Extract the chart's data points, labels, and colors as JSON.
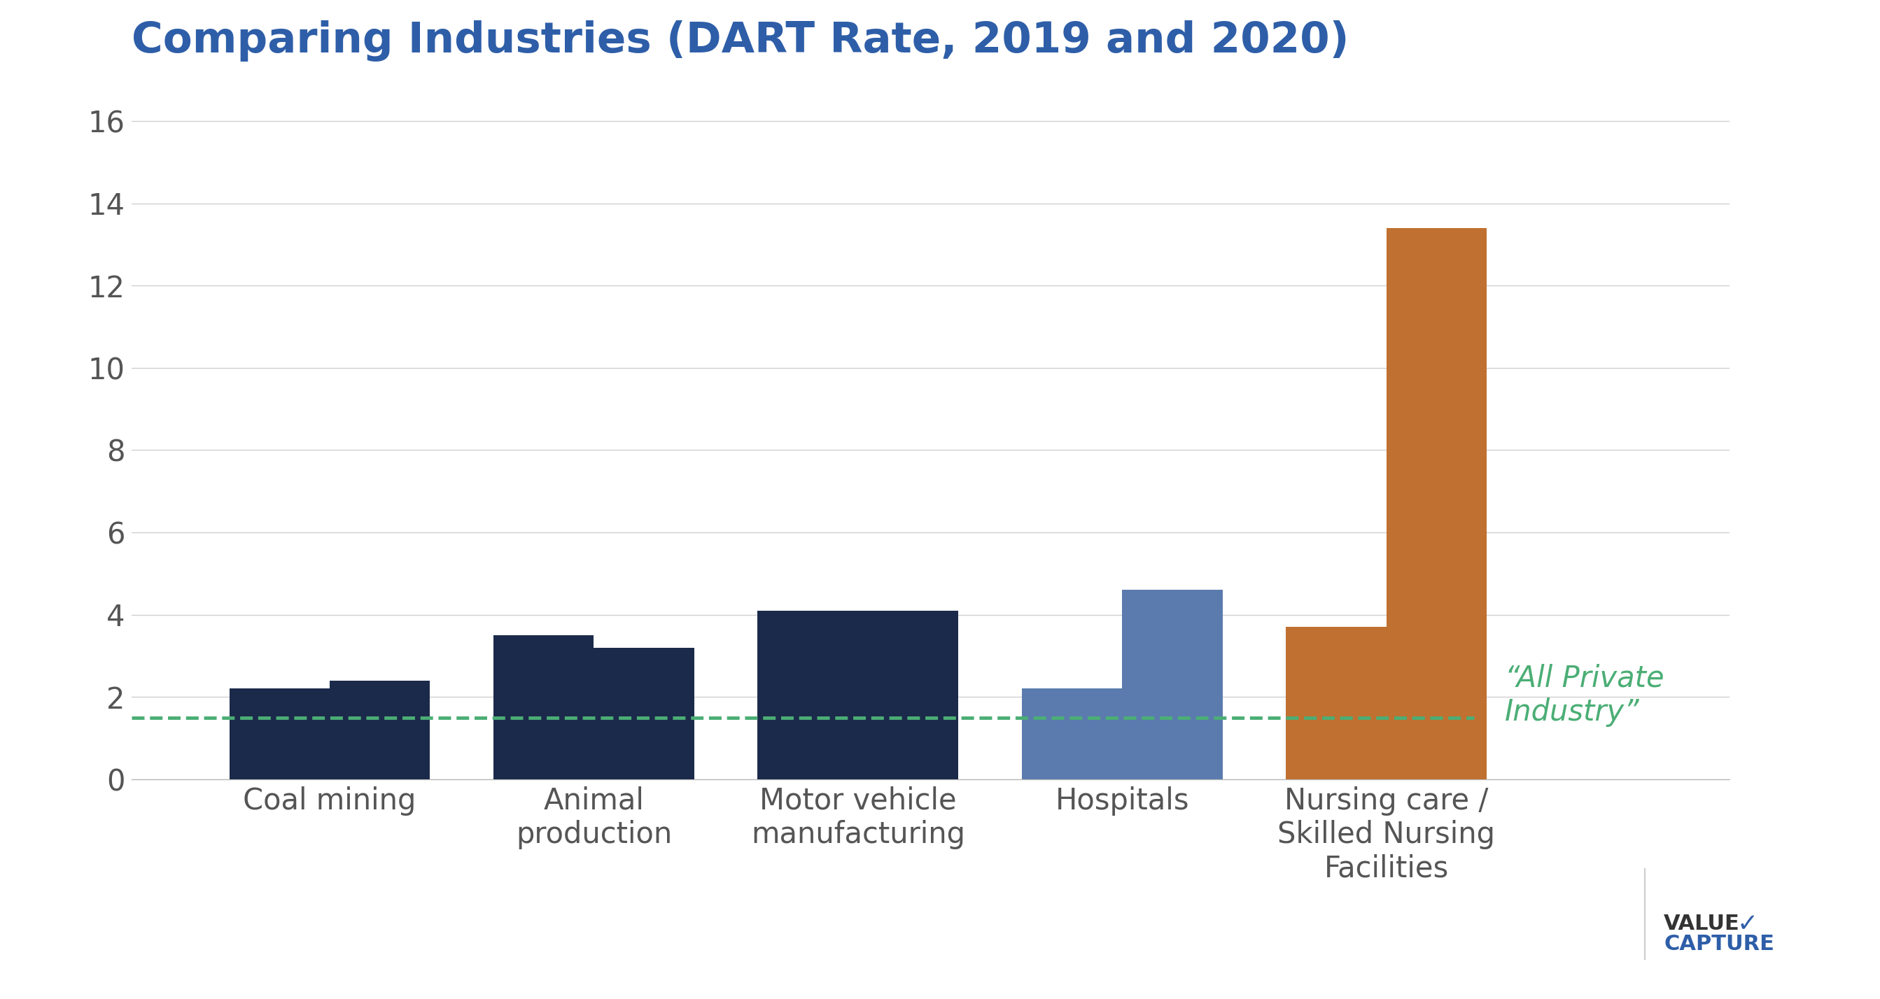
{
  "title": "Comparing Industries (DART Rate, 2019 and 2020)",
  "title_color": "#2E5EA8",
  "title_fontsize": 44,
  "categories": [
    "Coal mining",
    "Animal\nproduction",
    "Motor vehicle\nmanufacturing",
    "Hospitals",
    "Nursing care /\nSkilled Nursing\nFacilities"
  ],
  "values_2019": [
    2.2,
    3.5,
    4.1,
    2.2,
    3.7
  ],
  "values_2020": [
    2.4,
    3.2,
    4.1,
    4.6,
    13.4
  ],
  "colors_2019": [
    "#1B2A4A",
    "#1B2A4A",
    "#1B2A4A",
    "#5B7BAE",
    "#C07030"
  ],
  "colors_2020": [
    "#1B2A4A",
    "#1B2A4A",
    "#1B2A4A",
    "#5B7BAE",
    "#C07030"
  ],
  "dashed_line_y": 1.5,
  "dashed_line_color": "#4BAE75",
  "dashed_line_label": "“All Private\nIndustry”",
  "ylim": [
    0,
    17
  ],
  "yticks": [
    0,
    2,
    4,
    6,
    8,
    10,
    12,
    14,
    16
  ],
  "bar_width": 0.38,
  "background_color": "#FFFFFF",
  "grid_color": "#D0D0D0",
  "tick_label_fontsize": 30,
  "annotation_fontsize": 30,
  "annotation_color": "#4BAE75",
  "logo_value_color": "#333333",
  "logo_capture_color": "#2E5EA8",
  "logo_fontsize": 22
}
